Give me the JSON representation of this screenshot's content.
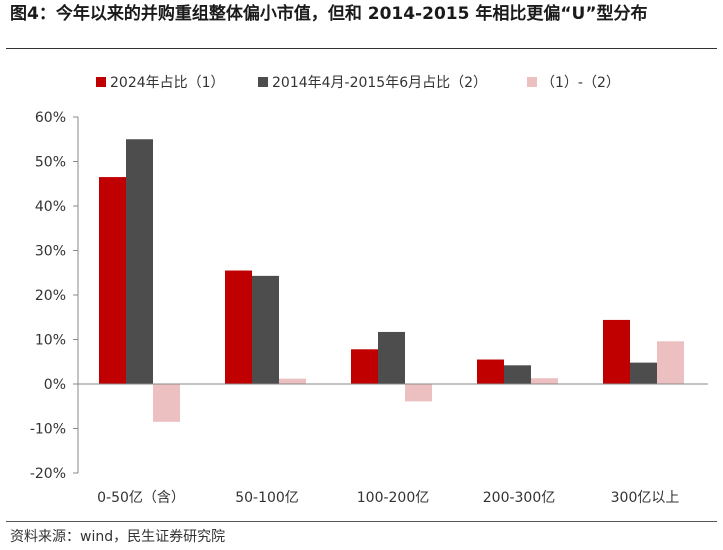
{
  "title": "图4：今年以来的并购重组整体偏小市值，但和 2014-2015 年相比更偏“U”型分布",
  "source": "资料来源：wind，民生证券研究院",
  "chart_data": {
    "type": "bar",
    "categories": [
      "0-50亿（含）",
      "50-100亿",
      "100-200亿",
      "200-300亿",
      "300亿以上"
    ],
    "series": [
      {
        "name": "2024年占比（1）",
        "color": "#c00000",
        "values": [
          46.5,
          25.5,
          7.8,
          5.5,
          14.4
        ]
      },
      {
        "name": "2014年4月-2015年6月占比（2）",
        "color": "#4d4d4d",
        "values": [
          55.0,
          24.3,
          11.7,
          4.2,
          4.8
        ]
      },
      {
        "name": "（1）-（2）",
        "color": "#ecc0c0",
        "values": [
          -8.5,
          1.2,
          -3.9,
          1.3,
          9.6
        ]
      }
    ],
    "yticks": [
      "60%",
      "50%",
      "40%",
      "30%",
      "20%",
      "10%",
      "0%",
      "-10%",
      "-20%"
    ],
    "ylim": [
      -20,
      60
    ],
    "legend_position": "top",
    "grid": false
  }
}
